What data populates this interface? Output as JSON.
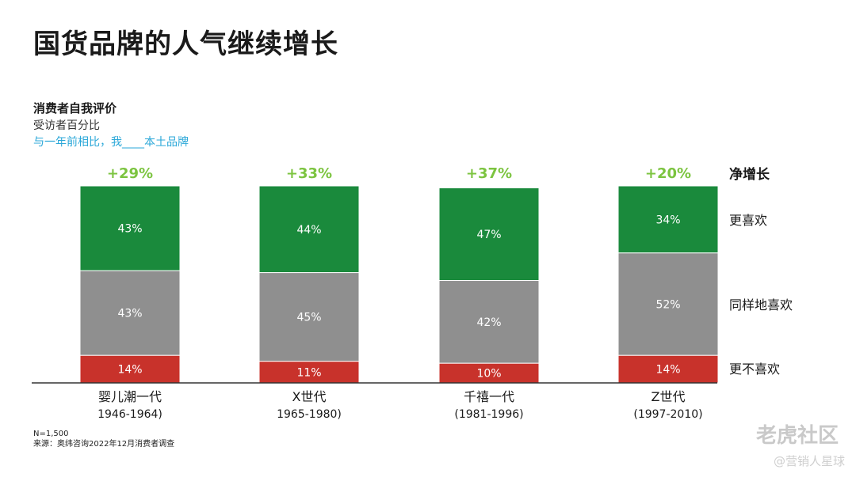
{
  "title": "国货品牌的人气继续增长",
  "subtitle1": "消费者自我评价",
  "subtitle2": "受访者百分比",
  "subtitle3": "与一年前相比，我____本土品牌",
  "colors": {
    "more": "#1a8a3c",
    "same": "#8f8f8f",
    "less": "#c8322b",
    "net": "#7cc440",
    "sub3": "#2aa7d8"
  },
  "chart_data": {
    "type": "bar",
    "stacked": true,
    "categories": [
      "婴儿潮一代",
      "X世代",
      "千禧一代",
      "Z世代"
    ],
    "category_ranges": [
      "1946-1964)",
      "1965-1980)",
      "(1981-1996)",
      "(1997-2010)"
    ],
    "series": [
      {
        "name": "更不喜欢",
        "values": [
          14,
          11,
          10,
          14
        ]
      },
      {
        "name": "同样地喜欢",
        "values": [
          43,
          45,
          42,
          52
        ]
      },
      {
        "name": "更喜欢",
        "values": [
          43,
          44,
          47,
          34
        ]
      }
    ],
    "value_labels": {
      "更不喜欢": [
        "14%",
        "11%",
        "10%",
        "14%"
      ],
      "同样地喜欢": [
        "43%",
        "45%",
        "42%",
        "52%"
      ],
      "更喜欢": [
        "43%",
        "44%",
        "47%",
        "34%"
      ]
    },
    "net_header": "净增长",
    "net_growth": [
      "+29%",
      "+33%",
      "+37%",
      "+20%"
    ],
    "ylim": [
      0,
      100
    ]
  },
  "notes": {
    "n": "N=1,500",
    "source": "来源：奥纬咨询2022年12月消费者调查"
  },
  "watermark": {
    "main": "老虎社区",
    "sub": "@营销人星球"
  }
}
